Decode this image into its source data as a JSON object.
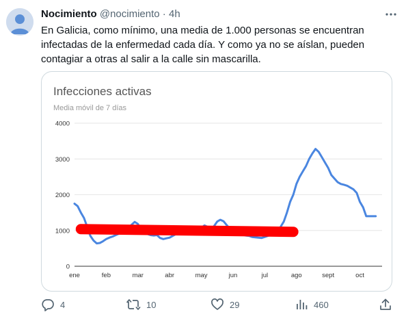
{
  "tweet": {
    "author_name": "Nocimiento",
    "author_handle": "@nocimiento",
    "separator": " · ",
    "time": "4h",
    "text": "En Galicia, como mínimo, una media de 1.000 personas se encuentran infectadas de la enfermedad cada día. Y como ya no se aíslan, pueden contagiar a otras al salir a la calle sin mascarilla."
  },
  "actions": {
    "replies": "4",
    "retweets": "10",
    "likes": "29",
    "views": "460"
  },
  "icons": [
    "avatar-icon",
    "more-icon",
    "reply-icon",
    "retweet-icon",
    "like-icon",
    "views-icon",
    "share-icon"
  ],
  "colors": {
    "line": "#4a86e0",
    "annotation": "#ff0000",
    "grid": "#e6e6e6",
    "text_secondary": "#536471"
  },
  "chart_data": {
    "type": "line",
    "title": "Infecciones activas",
    "subtitle": "Media móvil de 7 días",
    "x_labels": [
      "ene",
      "feb",
      "mar",
      "abr",
      "may",
      "jun",
      "jul",
      "ago",
      "sept",
      "oct"
    ],
    "x_label_positions": [
      0,
      1,
      2,
      3,
      4,
      5,
      6,
      7,
      8,
      9
    ],
    "y_ticks": [
      "0",
      "1000",
      "2000",
      "3000",
      "4000"
    ],
    "ylim": [
      0,
      4000
    ],
    "xlim": [
      0,
      9.7
    ],
    "grid": true,
    "series": [
      {
        "x": [
          0,
          0.1,
          0.2,
          0.3,
          0.4,
          0.5,
          0.6,
          0.7,
          0.8,
          0.9,
          1.0,
          1.1,
          1.2,
          1.3,
          1.4,
          1.5,
          1.6,
          1.7,
          1.8,
          1.9,
          2.0,
          2.1,
          2.2,
          2.3,
          2.4,
          2.5,
          2.6,
          2.7,
          2.8,
          2.9,
          3.0,
          3.1,
          3.2,
          3.3,
          3.4,
          3.5,
          3.6,
          3.7,
          3.8,
          3.9,
          4.0,
          4.1,
          4.2,
          4.3,
          4.4,
          4.5,
          4.6,
          4.7,
          4.8,
          4.9,
          5.0,
          5.1,
          5.2,
          5.3,
          5.4,
          5.5,
          5.6,
          5.7,
          5.8,
          5.9,
          6.0,
          6.1,
          6.2,
          6.3,
          6.4,
          6.5,
          6.6,
          6.7,
          6.8,
          6.9,
          7.0,
          7.1,
          7.2,
          7.3,
          7.4,
          7.5,
          7.6,
          7.7,
          7.8,
          7.9,
          8.0,
          8.1,
          8.2,
          8.3,
          8.4,
          8.5,
          8.6,
          8.7,
          8.8,
          8.9,
          9.0,
          9.1,
          9.2,
          9.3,
          9.4,
          9.5,
          9.6
        ],
        "values": [
          1750,
          1680,
          1500,
          1350,
          1100,
          850,
          720,
          640,
          650,
          700,
          760,
          800,
          830,
          870,
          910,
          930,
          960,
          1050,
          1160,
          1240,
          1180,
          1020,
          960,
          900,
          870,
          860,
          870,
          790,
          760,
          780,
          800,
          850,
          900,
          920,
          940,
          960,
          980,
          960,
          940,
          1000,
          1080,
          1140,
          1100,
          1060,
          1120,
          1250,
          1300,
          1260,
          1150,
          1050,
          980,
          940,
          900,
          880,
          860,
          850,
          820,
          810,
          800,
          790,
          820,
          850,
          880,
          900,
          980,
          1100,
          1250,
          1500,
          1800,
          2000,
          2300,
          2500,
          2650,
          2800,
          3000,
          3150,
          3280,
          3200,
          3050,
          2900,
          2750,
          2550,
          2450,
          2350,
          2300,
          2280,
          2250,
          2200,
          2150,
          2050,
          1800,
          1650,
          1400,
          1400,
          1400,
          1400,
          1400
        ]
      }
    ]
  }
}
